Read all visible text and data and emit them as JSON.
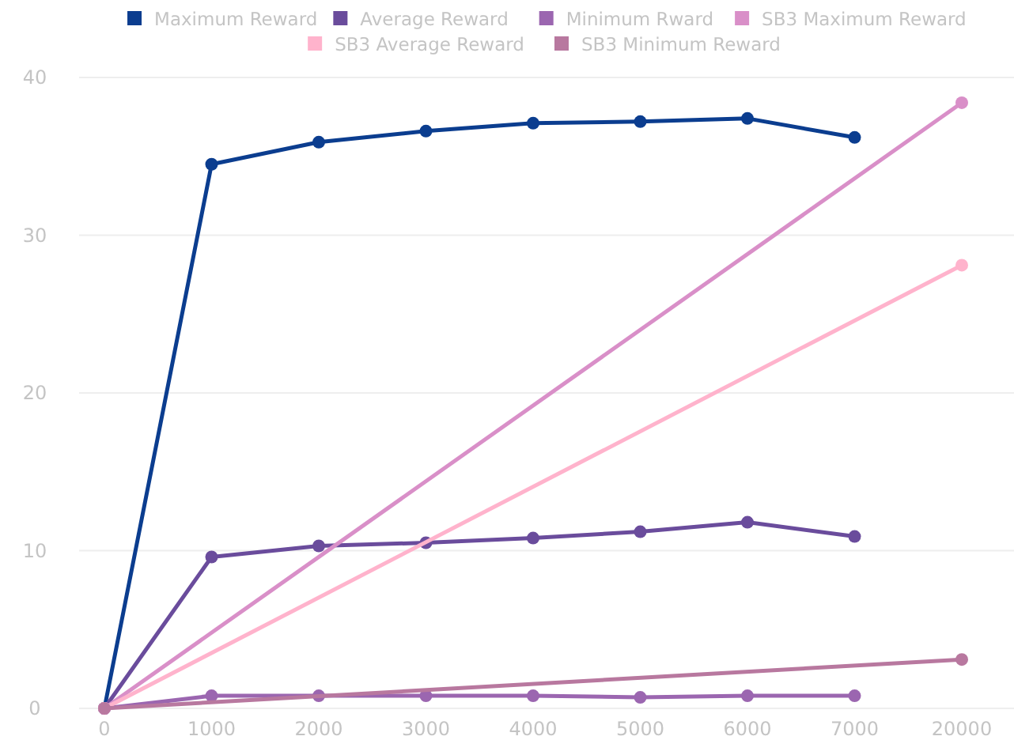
{
  "chart_data": {
    "type": "line",
    "categories": [
      "0",
      "1000",
      "2000",
      "3000",
      "4000",
      "5000",
      "6000",
      "7000",
      "20000"
    ],
    "series": [
      {
        "name": "Maximum Reward",
        "color": "#0b3d8f",
        "values": [
          0,
          34.5,
          35.9,
          36.6,
          37.1,
          37.2,
          37.4,
          36.2,
          null
        ]
      },
      {
        "name": "Average Reward",
        "color": "#6a4c9c",
        "values": [
          0,
          9.6,
          10.3,
          10.5,
          10.8,
          11.2,
          11.8,
          10.9,
          null
        ]
      },
      {
        "name": "Minimum Rward",
        "color": "#9b66b0",
        "values": [
          0,
          0.8,
          0.8,
          0.8,
          0.8,
          0.7,
          0.8,
          0.8,
          null
        ]
      },
      {
        "name": "SB3 Maximum Reward",
        "color": "#d98fc8",
        "x": [
          "0",
          "20000"
        ],
        "values": [
          0,
          38.4
        ]
      },
      {
        "name": "SB3 Average Reward",
        "color": "#ffb3cc",
        "x": [
          "0",
          "20000"
        ],
        "values": [
          0,
          28.1
        ]
      },
      {
        "name": "SB3 Minimum Reward",
        "color": "#b8789f",
        "x": [
          "0",
          "20000"
        ],
        "values": [
          0,
          3.1
        ]
      }
    ],
    "ylim": [
      0,
      40
    ],
    "yticks": [
      0,
      10,
      20,
      30,
      40
    ],
    "grid": "y",
    "legend": "top",
    "marker": "circle",
    "line_style": "solid"
  }
}
